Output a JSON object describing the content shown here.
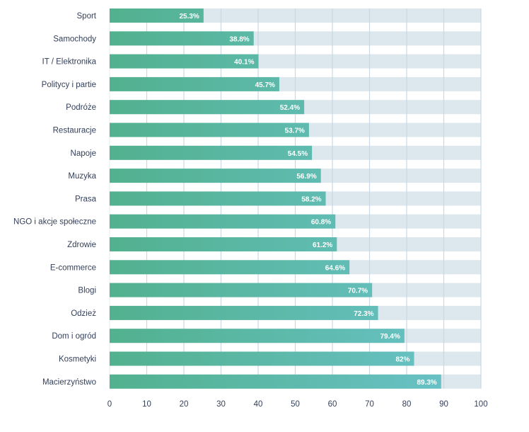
{
  "chart_data": {
    "type": "bar",
    "orientation": "horizontal",
    "title": "",
    "xlabel": "",
    "ylabel": "",
    "xlim": [
      0,
      100
    ],
    "xticks": [
      0,
      10,
      20,
      30,
      40,
      50,
      60,
      70,
      80,
      90,
      100
    ],
    "grid": true,
    "legend": "none",
    "categories": [
      "Sport",
      "Samochody",
      "IT / Elektronika",
      "Politycy i partie",
      "Podróże",
      "Restauracje",
      "Napoje",
      "Muzyka",
      "Prasa",
      "NGO i akcje społeczne",
      "Zdrowie",
      "E-commerce",
      "Blogi",
      "Odzież",
      "Dom i ogród",
      "Kosmetyki",
      "Macierzyństwo"
    ],
    "values": [
      25.3,
      38.8,
      40.1,
      45.7,
      52.4,
      53.7,
      54.5,
      56.9,
      58.2,
      60.8,
      61.2,
      64.6,
      70.7,
      72.3,
      79.4,
      82,
      89.3
    ],
    "value_labels": [
      "25.3%",
      "38.8%",
      "40.1%",
      "45.7%",
      "52.4%",
      "53.7%",
      "54.5%",
      "56.9%",
      "58.2%",
      "60.8%",
      "61.2%",
      "64.6%",
      "70.7%",
      "72.3%",
      "79.4%",
      "82%",
      "89.3%"
    ],
    "colors": {
      "bar_start": "#52b18e",
      "bar_end": "#6ac3cb",
      "track": "#dde7ee",
      "grid": "#c9d8e2",
      "text": "#34405a"
    }
  }
}
